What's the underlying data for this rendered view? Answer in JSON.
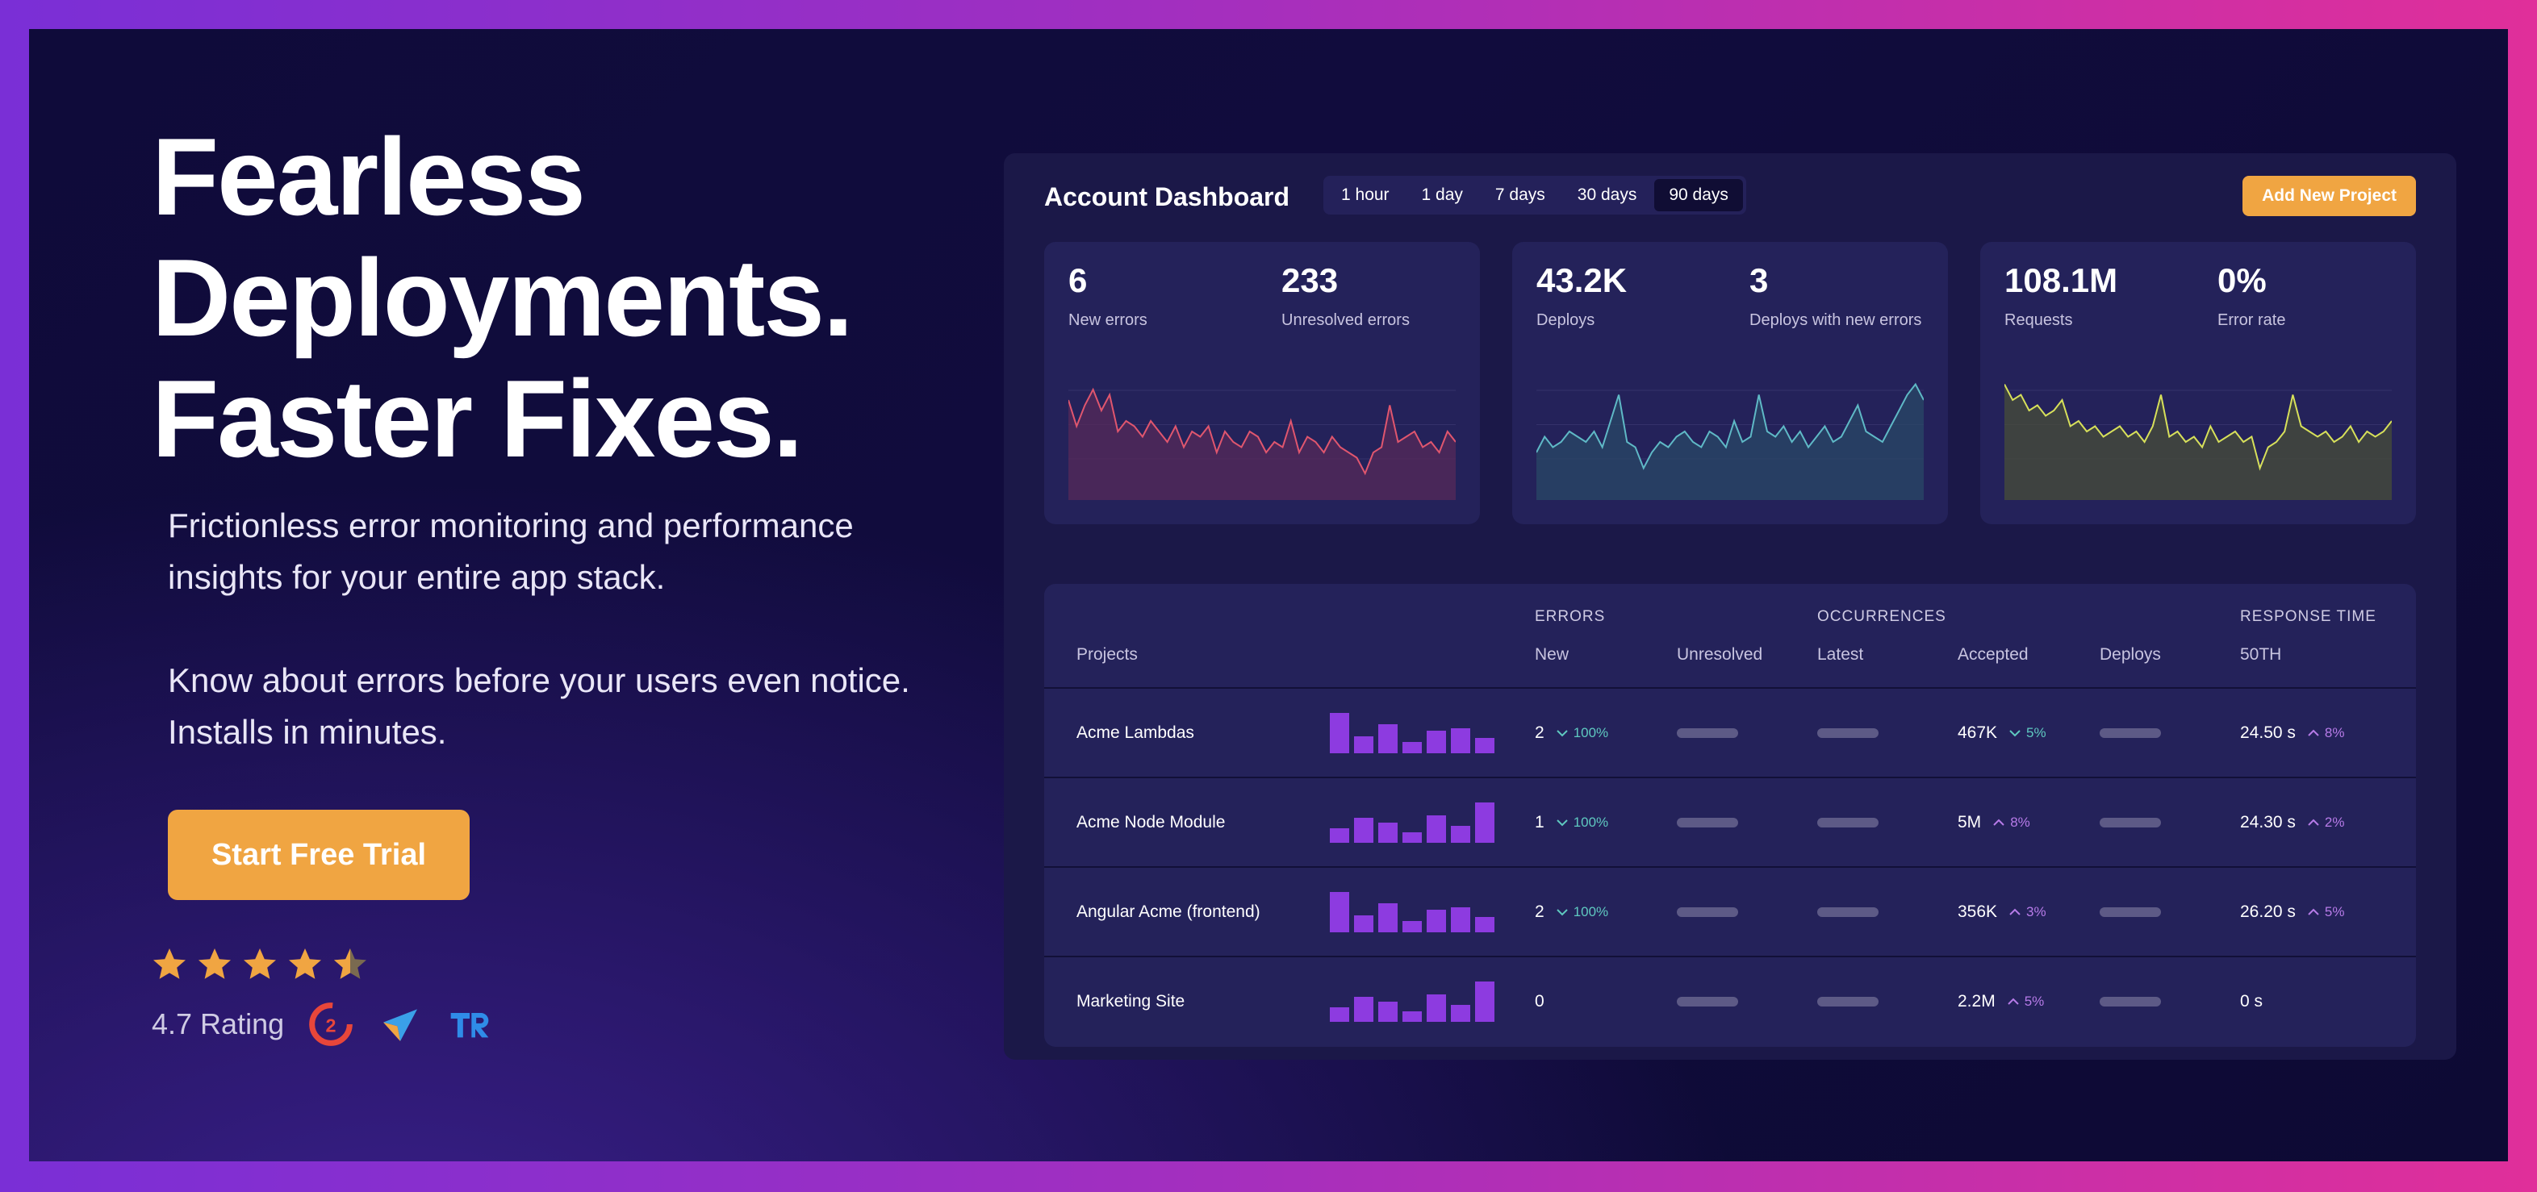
{
  "hero": {
    "title_lines": [
      "Fearless",
      "Deployments.",
      "Faster Fixes."
    ],
    "subtitle_1": "Frictionless error monitoring and performance insights for your entire app stack.",
    "subtitle_2": "Know about errors before your users even notice. Installs in minutes.",
    "cta_label": "Start Free Trial",
    "rating_text": "4.7 Rating",
    "rating_value": 4.7
  },
  "dashboard": {
    "title": "Account Dashboard",
    "ranges": [
      "1 hour",
      "1 day",
      "7 days",
      "30 days",
      "90 days"
    ],
    "active_range": "90 days",
    "add_project_label": "Add New Project",
    "cards": [
      {
        "stats": [
          {
            "value": "6",
            "label": "New errors"
          },
          {
            "value": "233",
            "label": "Unresolved errors"
          }
        ],
        "color": "#e0566e"
      },
      {
        "stats": [
          {
            "value": "43.2K",
            "label": "Deploys"
          },
          {
            "value": "3",
            "label": "Deploys with new errors"
          }
        ],
        "color": "#5fb9c6"
      },
      {
        "stats": [
          {
            "value": "108.1M",
            "label": "Requests"
          },
          {
            "value": "0%",
            "label": "Error rate"
          }
        ],
        "color": "#d7e05a"
      }
    ],
    "table": {
      "groups": {
        "errors": "ERRORS",
        "occurrences": "OCCURRENCES",
        "response_time": "RESPONSE TIME"
      },
      "headers": {
        "projects": "Projects",
        "new": "New",
        "unresolved": "Unresolved",
        "latest": "Latest",
        "accepted": "Accepted",
        "deploys": "Deploys",
        "p50": "50TH"
      },
      "rows": [
        {
          "name": "Acme Lambdas",
          "new": "2",
          "new_trend": "100%",
          "new_dir": "down",
          "accepted": "467K",
          "acc_trend": "5%",
          "acc_dir": "down",
          "resp": "24.50 s",
          "resp_trend": "8%",
          "resp_dir": "up"
        },
        {
          "name": "Acme Node Module",
          "new": "1",
          "new_trend": "100%",
          "new_dir": "down",
          "accepted": "5M",
          "acc_trend": "8%",
          "acc_dir": "up",
          "resp": "24.30 s",
          "resp_trend": "2%",
          "resp_dir": "up"
        },
        {
          "name": "Angular Acme (frontend)",
          "new": "2",
          "new_trend": "100%",
          "new_dir": "down",
          "accepted": "356K",
          "acc_trend": "3%",
          "acc_dir": "up",
          "resp": "26.20 s",
          "resp_trend": "5%",
          "resp_dir": "up"
        },
        {
          "name": "Marketing Site",
          "new": "0",
          "new_trend": "",
          "new_dir": "",
          "accepted": "2.2M",
          "acc_trend": "5%",
          "acc_dir": "up",
          "resp": "0 s",
          "resp_trend": "",
          "resp_dir": ""
        }
      ]
    }
  },
  "colors": {
    "accent": "#f0a542",
    "bar": "#8d3be0"
  }
}
